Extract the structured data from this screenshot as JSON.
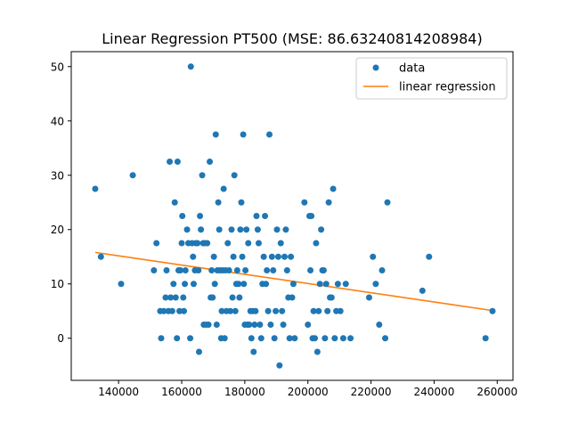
{
  "chart_data": {
    "type": "scatter",
    "title": "Linear Regression PT500 (MSE: 86.63240814208984)",
    "xlabel": "",
    "ylabel": "",
    "xlim": [
      125000,
      265000
    ],
    "ylim": [
      -7.75,
      52.75
    ],
    "x_ticks": [
      140000,
      160000,
      180000,
      200000,
      220000,
      240000,
      260000
    ],
    "x_tick_labels": [
      "140000",
      "160000",
      "180000",
      "200000",
      "220000",
      "240000",
      "260000"
    ],
    "y_ticks": [
      0,
      10,
      20,
      30,
      40,
      50
    ],
    "y_tick_labels": [
      "0",
      "10",
      "20",
      "30",
      "40",
      "50"
    ],
    "grid": false,
    "legend_position": "top-right",
    "colors": {
      "data": "#1f77b4",
      "regression": "#ff7f0e"
    },
    "series": [
      {
        "name": "data",
        "kind": "scatter",
        "points": [
          [
            132600,
            27.5
          ],
          [
            134400,
            15
          ],
          [
            140800,
            10
          ],
          [
            144500,
            30
          ],
          [
            151200,
            12.5
          ],
          [
            152000,
            17.5
          ],
          [
            153200,
            5
          ],
          [
            153500,
            0
          ],
          [
            154300,
            5
          ],
          [
            154900,
            7.5
          ],
          [
            155200,
            12.5
          ],
          [
            155800,
            5
          ],
          [
            156200,
            32.5
          ],
          [
            156500,
            7.5
          ],
          [
            157000,
            5
          ],
          [
            157400,
            10
          ],
          [
            157800,
            25
          ],
          [
            158100,
            7.5
          ],
          [
            158500,
            0
          ],
          [
            158700,
            32.5
          ],
          [
            159000,
            12.5
          ],
          [
            159300,
            5
          ],
          [
            159600,
            12.5
          ],
          [
            160000,
            17.5
          ],
          [
            160200,
            22.5
          ],
          [
            160500,
            7.5
          ],
          [
            160700,
            5
          ],
          [
            161000,
            10
          ],
          [
            161200,
            12.5
          ],
          [
            161700,
            20
          ],
          [
            162100,
            17.5
          ],
          [
            162700,
            0
          ],
          [
            162900,
            50
          ],
          [
            163300,
            17.5
          ],
          [
            163600,
            15
          ],
          [
            163800,
            10
          ],
          [
            164200,
            12.5
          ],
          [
            164500,
            17.5
          ],
          [
            165000,
            17.5
          ],
          [
            165300,
            12.5
          ],
          [
            165500,
            -2.5
          ],
          [
            165800,
            22.5
          ],
          [
            166100,
            20
          ],
          [
            166500,
            30
          ],
          [
            166800,
            17.5
          ],
          [
            167000,
            2.5
          ],
          [
            167300,
            17.5
          ],
          [
            167700,
            2.5
          ],
          [
            168100,
            17.5
          ],
          [
            168500,
            2.5
          ],
          [
            168900,
            32.5
          ],
          [
            169200,
            7.5
          ],
          [
            169500,
            12.5
          ],
          [
            169800,
            7.5
          ],
          [
            170200,
            15
          ],
          [
            170500,
            10
          ],
          [
            170800,
            37.5
          ],
          [
            171100,
            2.5
          ],
          [
            171300,
            12.5
          ],
          [
            171600,
            25
          ],
          [
            171900,
            20
          ],
          [
            172200,
            12.5
          ],
          [
            172500,
            0
          ],
          [
            172700,
            5
          ],
          [
            173000,
            12.5
          ],
          [
            173300,
            27.5
          ],
          [
            173600,
            0
          ],
          [
            173900,
            12.5
          ],
          [
            174200,
            5
          ],
          [
            174600,
            17.5
          ],
          [
            175000,
            12.5
          ],
          [
            175400,
            5
          ],
          [
            175800,
            20
          ],
          [
            176100,
            7.5
          ],
          [
            176400,
            15
          ],
          [
            176700,
            30
          ],
          [
            177000,
            5
          ],
          [
            177300,
            10
          ],
          [
            177600,
            12.5
          ],
          [
            178000,
            10
          ],
          [
            178300,
            7.5
          ],
          [
            178600,
            20
          ],
          [
            178900,
            25
          ],
          [
            179200,
            15
          ],
          [
            179500,
            37.5
          ],
          [
            179700,
            10
          ],
          [
            180000,
            2.5
          ],
          [
            180200,
            12.5
          ],
          [
            180500,
            20
          ],
          [
            180800,
            2.5
          ],
          [
            181100,
            17.5
          ],
          [
            181400,
            2.5
          ],
          [
            181800,
            5
          ],
          [
            182100,
            0
          ],
          [
            182500,
            5
          ],
          [
            182800,
            -2.5
          ],
          [
            183100,
            2.5
          ],
          [
            183400,
            5
          ],
          [
            183700,
            22.5
          ],
          [
            184100,
            20
          ],
          [
            184400,
            17.5
          ],
          [
            184800,
            2.5
          ],
          [
            185200,
            0
          ],
          [
            185600,
            10
          ],
          [
            186000,
            15
          ],
          [
            186400,
            22.5
          ],
          [
            186700,
            10
          ],
          [
            187000,
            12.5
          ],
          [
            187400,
            5
          ],
          [
            187800,
            37.5
          ],
          [
            188200,
            2.5
          ],
          [
            188600,
            15
          ],
          [
            189000,
            12.5
          ],
          [
            189400,
            0
          ],
          [
            189800,
            5
          ],
          [
            190200,
            20
          ],
          [
            190600,
            15
          ],
          [
            191000,
            -5
          ],
          [
            191400,
            17.5
          ],
          [
            191800,
            5
          ],
          [
            192200,
            2.5
          ],
          [
            192600,
            15
          ],
          [
            193000,
            20
          ],
          [
            193400,
            12.5
          ],
          [
            193800,
            7.5
          ],
          [
            194200,
            0
          ],
          [
            194600,
            15
          ],
          [
            195000,
            7.5
          ],
          [
            195400,
            10
          ],
          [
            195800,
            0
          ],
          [
            198900,
            25
          ],
          [
            200000,
            2.5
          ],
          [
            200500,
            22.5
          ],
          [
            200800,
            12.5
          ],
          [
            201100,
            22.5
          ],
          [
            201500,
            0
          ],
          [
            201800,
            5
          ],
          [
            202200,
            0
          ],
          [
            202600,
            17.5
          ],
          [
            203000,
            -2.5
          ],
          [
            203400,
            5
          ],
          [
            203800,
            10
          ],
          [
            204200,
            20
          ],
          [
            204600,
            12.5
          ],
          [
            205000,
            12.5
          ],
          [
            205400,
            0
          ],
          [
            205800,
            10
          ],
          [
            206200,
            5
          ],
          [
            206600,
            25
          ],
          [
            207000,
            7.5
          ],
          [
            207500,
            7.5
          ],
          [
            208000,
            27.5
          ],
          [
            208500,
            0
          ],
          [
            209000,
            5
          ],
          [
            209500,
            10
          ],
          [
            210300,
            5
          ],
          [
            211200,
            0
          ],
          [
            212000,
            10
          ],
          [
            213500,
            0
          ],
          [
            219400,
            7.5
          ],
          [
            220600,
            15
          ],
          [
            221500,
            10
          ],
          [
            222600,
            2.5
          ],
          [
            223500,
            12.5
          ],
          [
            224500,
            0
          ],
          [
            225200,
            25
          ],
          [
            236300,
            8.75
          ],
          [
            238400,
            15
          ],
          [
            256300,
            0
          ],
          [
            258500,
            5
          ]
        ]
      },
      {
        "name": "linear regression",
        "kind": "line",
        "points": [
          [
            132600,
            15.8
          ],
          [
            258500,
            5.1
          ]
        ]
      }
    ]
  }
}
